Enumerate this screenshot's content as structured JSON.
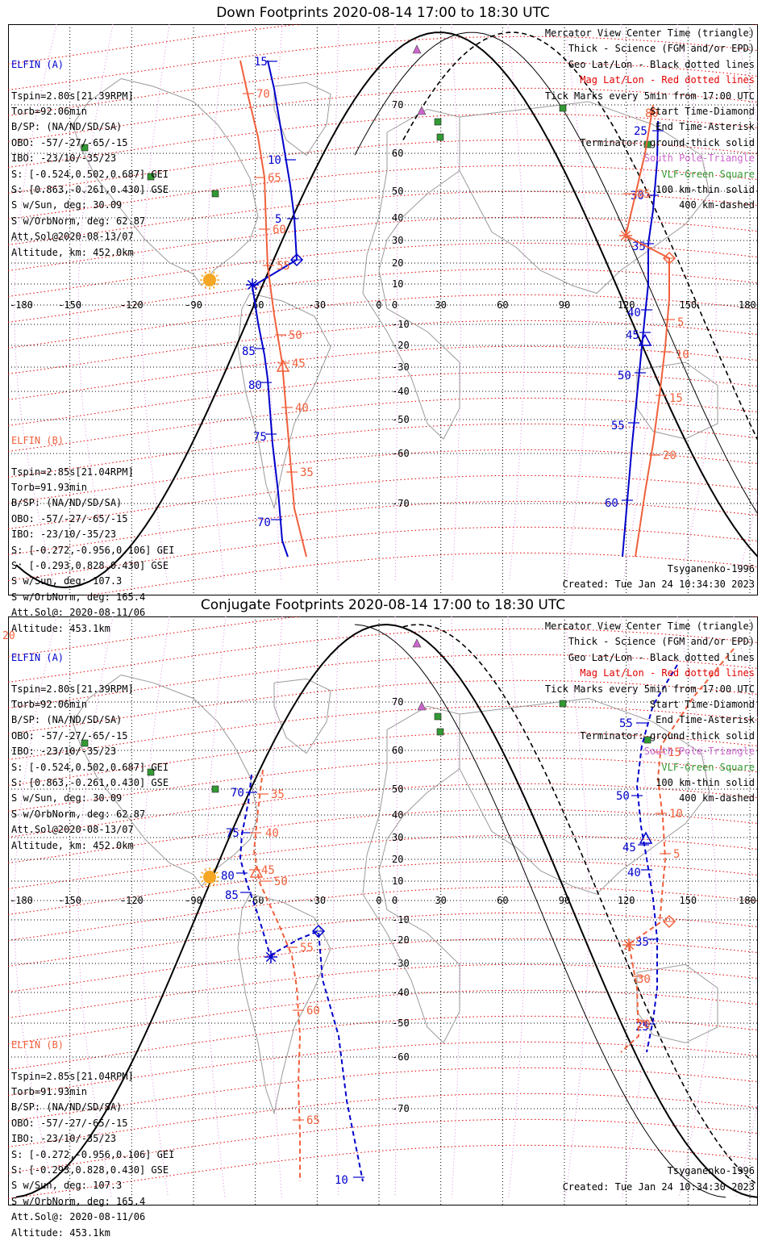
{
  "panels": [
    {
      "title": "Down Footprints 2020-08-14 17:00 to 18:30 UTC",
      "elfin_a": {
        "header": "ELFIN (A)",
        "lines": [
          "Tspin=2.80s[21.39RPM]",
          "Torb=92.06min",
          "B/SP: (NA/ND/SD/SA)",
          "OBO: -57/-27/-65/-15",
          "IBO: -23/10/-35/23",
          "S: [-0.524,0.502,0.687] GEI",
          "S: [0.863,-0.261,0.430] GSE",
          "S w/Sun, deg: 30.09",
          "S w/OrbNorm, deg: 62.87",
          "Att.Sol@2020-08-13/07",
          "Altitude, km: 452.0km"
        ]
      },
      "elfin_b": {
        "header": "ELFIN (B)",
        "lines": [
          "Tspin=2.85s[21.04RPM]",
          "Torb=91.93min",
          "B/SP: (NA/ND/SD/SA)",
          "OBO: -57/-27/-65/-15",
          "IBO: -23/10/-35/23",
          "S: [-0.272,-0.956,0.106] GEI",
          "S: [-0.293,0.828,0.430] GSE",
          "S w/Sun, deg: 107.3",
          "S w/OrbNorm, deg: 165.4",
          "Att.Sol@: 2020-08-11/06",
          "Altitude: 453.1km"
        ]
      },
      "model": "Tsyganenko-1996",
      "created": "Created: Tue Jan 24 10:34:30 2023",
      "extra_label": ""
    },
    {
      "title": "Conjugate Footprints 2020-08-14 17:00 to 18:30 UTC",
      "elfin_a": {
        "header": "ELFIN (A)",
        "lines": [
          "Tspin=2.80s[21.39RPM]",
          "Torb=92.06min",
          "B/SP: (NA/ND/SD/SA)",
          "OBO: -57/-27/-65/-15",
          "IBO: -23/10/-35/23",
          "S: [-0.524,0.502,0.687] GEI",
          "S: [0.863,-0.261,0.430] GSE",
          "S w/Sun, deg: 30.09",
          "S w/OrbNorm, deg: 62.87",
          "Att.Sol@2020-08-13/07",
          "Altitude, km: 452.0km"
        ]
      },
      "elfin_b": {
        "header": "ELFIN (B)",
        "lines": [
          "Tspin=2.85s[21.04RPM]",
          "Torb=91.93min",
          "B/SP: (NA/ND/SD/SA)",
          "OBO: -57/-27/-65/-15",
          "IBO: -23/10/-35/23",
          "S: [-0.272,-0.956,0.106] GEI",
          "S: [-0.293,0.828,0.430] GSE",
          "S w/Sun, deg: 107.3",
          "S w/OrbNorm, deg: 165.4",
          "Att.Sol@: 2020-08-11/06",
          "Altitude: 453.1km"
        ]
      },
      "model": "Tsyganenko-1996",
      "created": "Created: Tue Jan 24 10:34:30 2023",
      "extra_label": "20"
    }
  ],
  "legend": [
    {
      "text": "Mercator View Center Time (triangle)",
      "color": "#000000"
    },
    {
      "text": "Thick - Science (FGM and/or EPD)",
      "color": "#000000"
    },
    {
      "text": "Geo Lat/Lon - Black dotted lines",
      "color": "#000000"
    },
    {
      "text": "Mag Lat/Lon - Red dotted lines",
      "color": "#e00000"
    },
    {
      "text": "Tick Marks every 5min from 17:00 UTC",
      "color": "#000000"
    },
    {
      "text": "Start Time-Diamond",
      "color": "#000000"
    },
    {
      "text": "End Time-Asterisk",
      "color": "#000000"
    },
    {
      "text": "Terminator: ground-thick solid",
      "color": "#000000"
    },
    {
      "text": "South Pole-Triangle",
      "color": "#cc66cc"
    },
    {
      "text": "VLF-Green Square",
      "color": "#339933"
    },
    {
      "text": "100 km-thin solid",
      "color": "#000000"
    },
    {
      "text": "400 km-dashed",
      "color": "#000000"
    }
  ],
  "lon_ticks": [
    "-180",
    "-150",
    "-120",
    "-90",
    "-60",
    "-30",
    "0",
    "30",
    "60",
    "90",
    "120",
    "150",
    "180"
  ],
  "lat_ticks": [
    "70",
    "60",
    "50",
    "40",
    "30",
    "20",
    "10",
    "0",
    "-10",
    "-20",
    "-30",
    "-40",
    "-50",
    "-60",
    "-70"
  ],
  "colors": {
    "elfin_a": "#0000cc",
    "elfin_b": "#f0603c",
    "mag_grid": "#e00000",
    "geo_grid": "#000000",
    "sun": "#f5a623",
    "vlf": "#339933",
    "pole": "#cc66cc"
  },
  "chart_data": [
    {
      "type": "map",
      "title": "Down Footprints 2020-08-14 17:00 to 18:30 UTC",
      "tracks": [
        {
          "name": "ELFIN (A) west",
          "tick_labels": [
            "15",
            "10",
            "5",
            "85",
            "80",
            "75",
            "70"
          ]
        },
        {
          "name": "ELFIN (B) west",
          "tick_labels": [
            "70",
            "65",
            "60",
            "55",
            "50",
            "45",
            "40",
            "35"
          ]
        },
        {
          "name": "ELFIN (A) east",
          "tick_labels": [
            "25",
            "30",
            "35",
            "40",
            "45",
            "50",
            "55",
            "60"
          ]
        },
        {
          "name": "ELFIN (B) east",
          "tick_labels": [
            "80",
            "85",
            "5",
            "10",
            "15",
            "20"
          ]
        }
      ]
    },
    {
      "type": "map",
      "title": "Conjugate Footprints 2020-08-14 17:00 to 18:30 UTC",
      "tracks": [
        {
          "name": "ELFIN (A) west",
          "tick_labels": [
            "70",
            "75",
            "80",
            "85",
            "10"
          ]
        },
        {
          "name": "ELFIN (B) west",
          "tick_labels": [
            "35",
            "40",
            "45",
            "50",
            "55",
            "60",
            "65"
          ]
        },
        {
          "name": "ELFIN (A) east",
          "tick_labels": [
            "55",
            "50",
            "45",
            "40",
            "35",
            "25"
          ]
        },
        {
          "name": "ELFIN (B) east",
          "tick_labels": [
            "15",
            "10",
            "5",
            "30",
            "20"
          ]
        }
      ]
    }
  ]
}
